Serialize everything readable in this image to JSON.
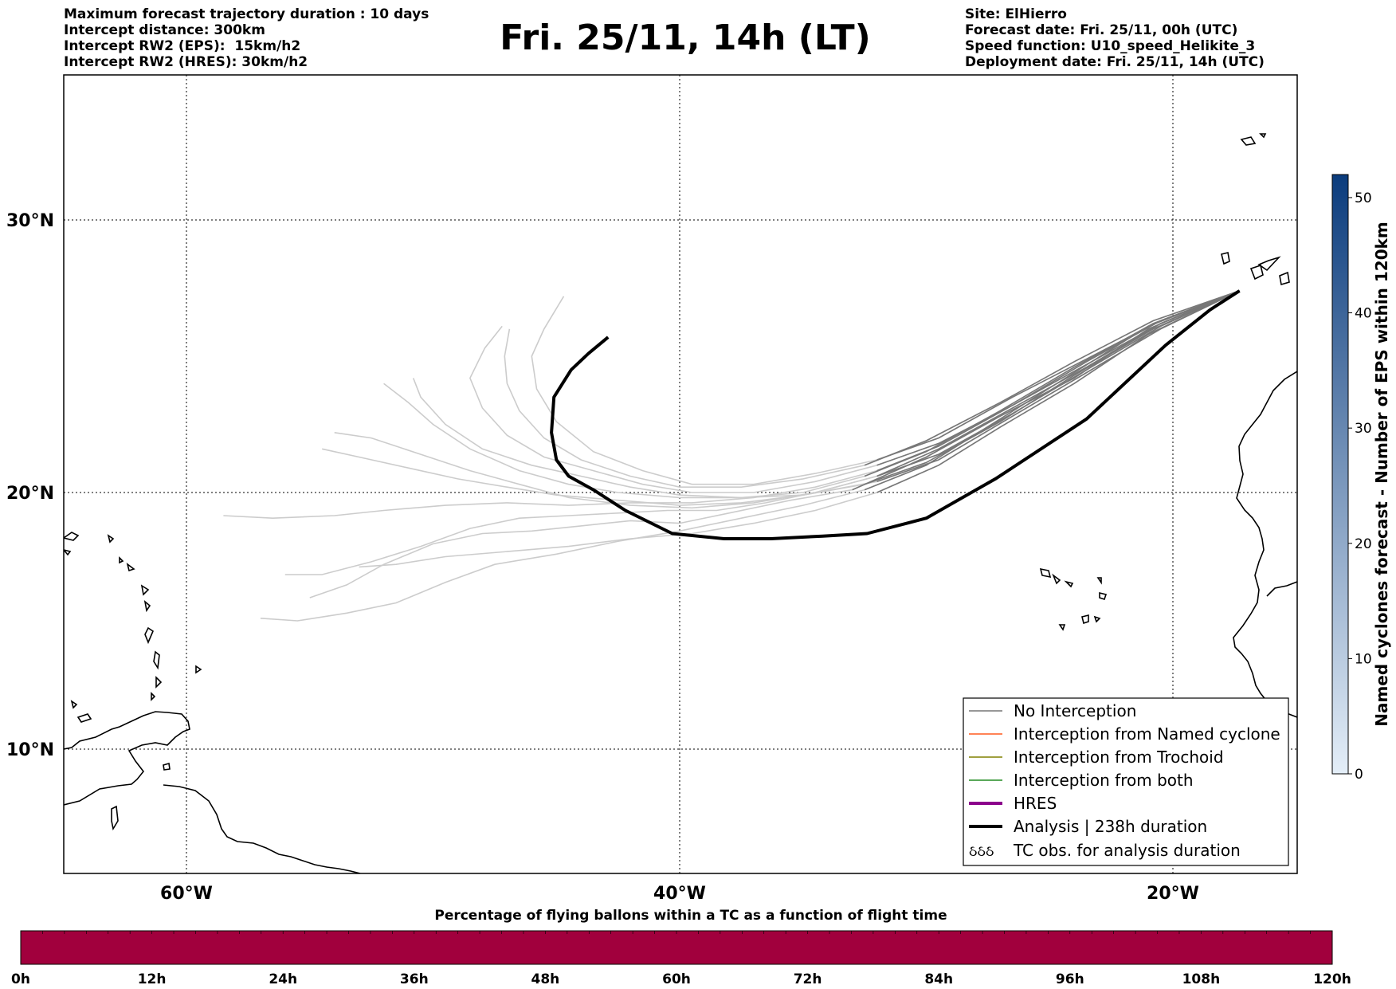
{
  "header": {
    "left_lines": [
      "Maximum forecast trajectory duration : 10 days",
      "Intercept distance: 300km",
      "Intercept RW2 (EPS):  15km/h2",
      "Intercept RW2 (HRES): 30km/h2"
    ],
    "right_lines": [
      "Site: ElHierro",
      "Forecast date: Fri. 25/11, 00h (UTC)",
      "Speed function: U10_speed_Helikite_3",
      "Deployment date: Fri. 25/11, 14h (UTC)"
    ],
    "title": "Fri. 25/11, 14h (LT)"
  },
  "map": {
    "lon_range": [
      -65,
      -15
    ],
    "lat_range": [
      5,
      35.3
    ],
    "lon_ticks": [
      {
        "value": -60,
        "label": "60°W"
      },
      {
        "value": -40,
        "label": "40°W"
      },
      {
        "value": -20,
        "label": "20°W"
      }
    ],
    "lat_ticks": [
      {
        "value": 10,
        "label": "10°N"
      },
      {
        "value": 20,
        "label": "20°N"
      },
      {
        "value": 30,
        "label": "30°N"
      }
    ],
    "colors": {
      "no_interception": "#777777",
      "eps_faded": "#cccccc",
      "named_cyclone": "#ff5a1f",
      "trochoid": "#808000",
      "both": "#228b22",
      "hres": "#8b008b",
      "analysis": "#000000"
    }
  },
  "chart_data": {
    "type": "line",
    "xlabel": "",
    "ylabel": "",
    "xlim": [
      -65,
      -15
    ],
    "ylim": [
      5,
      35.3
    ],
    "analysis_track": [
      [
        -17.3,
        27.4
      ],
      [
        -18.5,
        26.7
      ],
      [
        -20.3,
        25.4
      ],
      [
        -23.5,
        22.7
      ],
      [
        -27.2,
        20.5
      ],
      [
        -30.0,
        19.0
      ],
      [
        -32.4,
        18.4
      ],
      [
        -34.2,
        18.3
      ],
      [
        -36.3,
        18.2
      ],
      [
        -38.2,
        18.2
      ],
      [
        -40.3,
        18.4
      ],
      [
        -42.2,
        19.3
      ],
      [
        -43.5,
        20.1
      ],
      [
        -44.5,
        20.6
      ],
      [
        -45.0,
        21.2
      ],
      [
        -45.2,
        22.2
      ],
      [
        -45.1,
        23.5
      ],
      [
        -44.4,
        24.5
      ],
      [
        -43.7,
        25.1
      ],
      [
        -42.9,
        25.7
      ]
    ],
    "eps_members": [
      [
        [
          -17.3,
          27.4
        ],
        [
          -21,
          26.0
        ],
        [
          -24,
          24.2
        ],
        [
          -27,
          22.8
        ],
        [
          -30,
          21.3
        ],
        [
          -33,
          20.1
        ],
        [
          -35.5,
          19.7
        ],
        [
          -38,
          19.2
        ],
        [
          -40,
          18.8
        ],
        [
          -42,
          18.9
        ],
        [
          -44,
          18.7
        ],
        [
          -46,
          18.5
        ],
        [
          -48,
          18.4
        ],
        [
          -50,
          18.0
        ],
        [
          -52,
          17.2
        ],
        [
          -53.5,
          16.4
        ],
        [
          -55.0,
          15.9
        ]
      ],
      [
        [
          -17.3,
          27.4
        ],
        [
          -20.5,
          26.2
        ],
        [
          -23.5,
          24.6
        ],
        [
          -26.5,
          23.1
        ],
        [
          -29.5,
          21.6
        ],
        [
          -32,
          20.6
        ],
        [
          -34.5,
          20.0
        ],
        [
          -36.5,
          19.6
        ],
        [
          -38.5,
          19.3
        ],
        [
          -40.5,
          19.3
        ],
        [
          -42.5,
          19.2
        ],
        [
          -44.5,
          19.1
        ],
        [
          -46.5,
          19.0
        ],
        [
          -48.5,
          18.6
        ],
        [
          -50.5,
          17.9
        ],
        [
          -52.5,
          17.3
        ],
        [
          -54.5,
          16.8
        ],
        [
          -56,
          16.8
        ]
      ],
      [
        [
          -17.3,
          27.4
        ],
        [
          -21,
          26.1
        ],
        [
          -24,
          24.4
        ],
        [
          -27,
          22.7
        ],
        [
          -30,
          21.0
        ],
        [
          -32.5,
          20.1
        ],
        [
          -35,
          19.5
        ],
        [
          -37.5,
          19.0
        ],
        [
          -40,
          18.5
        ],
        [
          -42.5,
          18.1
        ],
        [
          -45,
          17.6
        ],
        [
          -47.5,
          17.2
        ],
        [
          -49.5,
          16.5
        ],
        [
          -51.5,
          15.7
        ],
        [
          -53.5,
          15.3
        ],
        [
          -55.5,
          15.0
        ],
        [
          -57,
          15.1
        ]
      ],
      [
        [
          -17.3,
          27.4
        ],
        [
          -21,
          25.8
        ],
        [
          -24,
          24.0
        ],
        [
          -27,
          22.4
        ],
        [
          -29.5,
          21.0
        ],
        [
          -32,
          20.0
        ],
        [
          -34.5,
          19.3
        ],
        [
          -37,
          18.8
        ],
        [
          -39.5,
          18.4
        ],
        [
          -42,
          18.2
        ],
        [
          -44.5,
          17.9
        ],
        [
          -47,
          17.7
        ],
        [
          -49.5,
          17.5
        ],
        [
          -51.5,
          17.2
        ],
        [
          -53,
          17.1
        ]
      ],
      [
        [
          -17.3,
          27.4
        ],
        [
          -20.5,
          26.3
        ],
        [
          -23.5,
          24.8
        ],
        [
          -26.5,
          23.2
        ],
        [
          -29.5,
          21.7
        ],
        [
          -32,
          20.8
        ],
        [
          -34.5,
          20.2
        ],
        [
          -37,
          19.8
        ],
        [
          -39.5,
          19.6
        ],
        [
          -42,
          19.6
        ],
        [
          -44.5,
          19.5
        ],
        [
          -47,
          19.6
        ],
        [
          -49.5,
          19.5
        ],
        [
          -52,
          19.3
        ],
        [
          -54,
          19.1
        ],
        [
          -56.5,
          19.0
        ],
        [
          -58.5,
          19.1
        ]
      ],
      [
        [
          -17.3,
          27.4
        ],
        [
          -20.8,
          26.0
        ],
        [
          -24,
          24.3
        ],
        [
          -27,
          22.6
        ],
        [
          -30,
          21.1
        ],
        [
          -32.5,
          20.3
        ],
        [
          -35,
          19.9
        ],
        [
          -37.5,
          19.6
        ],
        [
          -40,
          19.5
        ],
        [
          -42.5,
          19.7
        ],
        [
          -45,
          19.9
        ],
        [
          -47,
          20.2
        ],
        [
          -49,
          20.5
        ],
        [
          -51,
          20.9
        ],
        [
          -53,
          21.3
        ],
        [
          -54.5,
          21.6
        ]
      ],
      [
        [
          -17.3,
          27.4
        ],
        [
          -20.5,
          26.1
        ],
        [
          -23.5,
          24.5
        ],
        [
          -26.5,
          22.9
        ],
        [
          -29.5,
          21.4
        ],
        [
          -32,
          20.6
        ],
        [
          -34.5,
          20.0
        ],
        [
          -37,
          19.6
        ],
        [
          -39.5,
          19.4
        ],
        [
          -42,
          19.5
        ],
        [
          -44.5,
          19.8
        ],
        [
          -46.5,
          20.3
        ],
        [
          -48.5,
          20.8
        ],
        [
          -50.5,
          21.4
        ],
        [
          -52.5,
          22.0
        ],
        [
          -54,
          22.2
        ]
      ],
      [
        [
          -17.3,
          27.4
        ],
        [
          -20.8,
          26.2
        ],
        [
          -24,
          24.6
        ],
        [
          -27,
          23.0
        ],
        [
          -30,
          21.5
        ],
        [
          -32.5,
          20.6
        ],
        [
          -35,
          20.0
        ],
        [
          -37.5,
          19.8
        ],
        [
          -40,
          19.8
        ],
        [
          -42.5,
          20.0
        ],
        [
          -44.5,
          20.3
        ],
        [
          -46.5,
          20.8
        ],
        [
          -48.5,
          21.6
        ],
        [
          -50,
          22.5
        ],
        [
          -51,
          23.3
        ],
        [
          -52,
          24.0
        ]
      ],
      [
        [
          -17.3,
          27.4
        ],
        [
          -20.5,
          26.0
        ],
        [
          -23.5,
          24.4
        ],
        [
          -26.5,
          22.8
        ],
        [
          -29.5,
          21.2
        ],
        [
          -32,
          20.4
        ],
        [
          -35,
          19.9
        ],
        [
          -37.5,
          19.8
        ],
        [
          -40,
          19.9
        ],
        [
          -42,
          20.2
        ],
        [
          -44,
          20.6
        ],
        [
          -46,
          21.0
        ],
        [
          -48,
          21.6
        ],
        [
          -49.5,
          22.5
        ],
        [
          -50.5,
          23.5
        ],
        [
          -50.8,
          24.2
        ]
      ],
      [
        [
          -17.3,
          27.4
        ],
        [
          -20.5,
          26.2
        ],
        [
          -23.5,
          24.7
        ],
        [
          -26.5,
          23.2
        ],
        [
          -29.5,
          21.8
        ],
        [
          -32,
          21.0
        ],
        [
          -34.5,
          20.4
        ],
        [
          -37,
          20.0
        ],
        [
          -39.5,
          20.0
        ],
        [
          -41.5,
          20.3
        ],
        [
          -43.5,
          20.8
        ],
        [
          -45.5,
          21.3
        ],
        [
          -47,
          22.1
        ],
        [
          -48,
          23.1
        ],
        [
          -48.5,
          24.2
        ],
        [
          -47.9,
          25.3
        ],
        [
          -47.2,
          26.1
        ]
      ],
      [
        [
          -17.3,
          27.4
        ],
        [
          -20.8,
          26.3
        ],
        [
          -24,
          24.8
        ],
        [
          -27,
          23.3
        ],
        [
          -30,
          21.9
        ],
        [
          -32.5,
          21.0
        ],
        [
          -35,
          20.5
        ],
        [
          -37.5,
          20.2
        ],
        [
          -40,
          20.2
        ],
        [
          -42,
          20.6
        ],
        [
          -44,
          21.2
        ],
        [
          -45.5,
          22.0
        ],
        [
          -46.5,
          23.0
        ],
        [
          -47,
          24.0
        ],
        [
          -47.1,
          25.0
        ],
        [
          -46.9,
          26.0
        ]
      ],
      [
        [
          -17.3,
          27.4
        ],
        [
          -20.5,
          26.3
        ],
        [
          -23.5,
          24.9
        ],
        [
          -26.5,
          23.5
        ],
        [
          -29.5,
          22.0
        ],
        [
          -32,
          21.2
        ],
        [
          -34.5,
          20.7
        ],
        [
          -37,
          20.3
        ],
        [
          -39.5,
          20.3
        ],
        [
          -41.5,
          20.8
        ],
        [
          -43.5,
          21.5
        ],
        [
          -45,
          22.6
        ],
        [
          -45.8,
          23.8
        ],
        [
          -46,
          25.0
        ],
        [
          -45.5,
          26.0
        ],
        [
          -44.7,
          27.2
        ]
      ]
    ]
  },
  "legend": {
    "items": [
      {
        "label": "No Interception",
        "style": "no_interception"
      },
      {
        "label": "Interception from Named cyclone",
        "style": "named_cyclone"
      },
      {
        "label": "Interception from Trochoid",
        "style": "trochoid"
      },
      {
        "label": "Interception from both",
        "style": "both"
      },
      {
        "label": "HRES",
        "style": "hres"
      },
      {
        "label": "Analysis | 238h duration",
        "style": "analysis"
      },
      {
        "label": "TC obs. for analysis duration",
        "style": "tc_obs"
      }
    ],
    "tc_obs_symbol": "ઠઠઠ"
  },
  "colorbar": {
    "label": "Named cyclones forecast - Number of EPS within 120km",
    "range": [
      0,
      52
    ],
    "ticks": [
      0,
      10,
      20,
      30,
      40,
      50
    ],
    "color_low": "#e4eef8",
    "color_high": "#0b3c7d"
  },
  "percentage_bar": {
    "title": "Percentage of flying ballons within a TC as a function of flight time",
    "ticks": [
      "0h",
      "12h",
      "24h",
      "36h",
      "48h",
      "60h",
      "72h",
      "84h",
      "96h",
      "108h",
      "120h"
    ],
    "fill_color": "#a1003d",
    "values_percent": [
      0,
      0,
      0,
      0,
      0,
      0,
      0,
      0,
      0,
      0,
      0
    ]
  }
}
